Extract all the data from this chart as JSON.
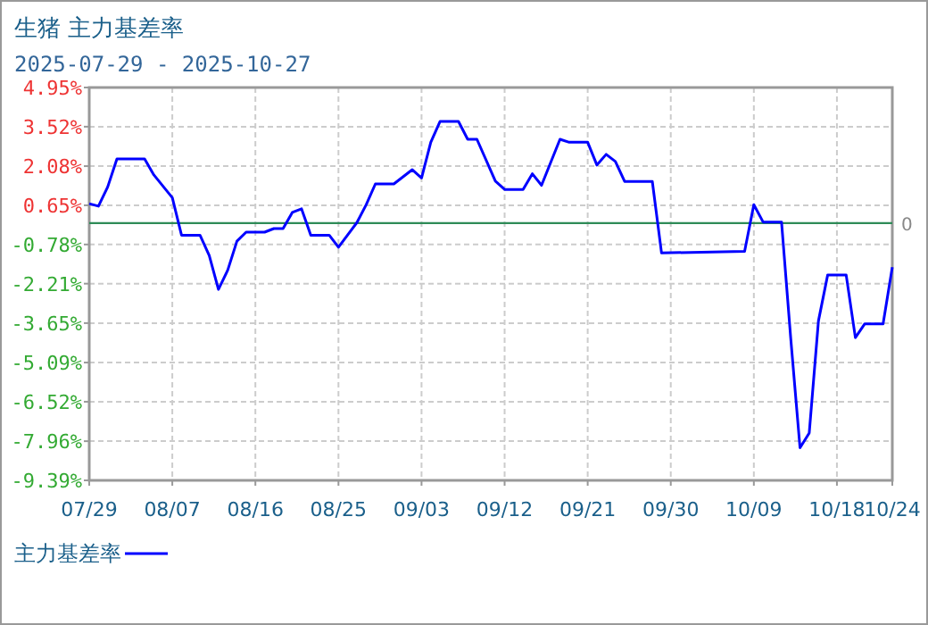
{
  "chart_data": {
    "type": "line",
    "title": "生猪 主力基差率",
    "subtitle": "2025-07-29 - 2025-10-27",
    "x": [
      "2025-07-29",
      "2025-07-30",
      "2025-07-31",
      "2025-08-01",
      "2025-08-04",
      "2025-08-05",
      "2025-08-07",
      "2025-08-08",
      "2025-08-10",
      "2025-08-11",
      "2025-08-12",
      "2025-08-13",
      "2025-08-14",
      "2025-08-15",
      "2025-08-17",
      "2025-08-18",
      "2025-08-19",
      "2025-08-20",
      "2025-08-21",
      "2025-08-22",
      "2025-08-24",
      "2025-08-25",
      "2025-08-27",
      "2025-08-28",
      "2025-08-29",
      "2025-08-31",
      "2025-09-02",
      "2025-09-03",
      "2025-09-04",
      "2025-09-05",
      "2025-09-07",
      "2025-09-08",
      "2025-09-09",
      "2025-09-11",
      "2025-09-12",
      "2025-09-14",
      "2025-09-15",
      "2025-09-16",
      "2025-09-18",
      "2025-09-19",
      "2025-09-21",
      "2025-09-22",
      "2025-09-23",
      "2025-09-24",
      "2025-09-25",
      "2025-09-28",
      "2025-09-29",
      "2025-10-08",
      "2025-10-09",
      "2025-10-10",
      "2025-10-12",
      "2025-10-13",
      "2025-10-14",
      "2025-10-15",
      "2025-10-16",
      "2025-10-17",
      "2025-10-19",
      "2025-10-20",
      "2025-10-21",
      "2025-10-23",
      "2025-10-24"
    ],
    "series": [
      {
        "name": "主力基差率",
        "color": "#0000ff",
        "values": [
          0.71,
          0.62,
          1.32,
          2.34,
          2.34,
          1.76,
          0.93,
          -0.44,
          -0.44,
          -1.18,
          -2.42,
          -1.72,
          -0.66,
          -0.33,
          -0.33,
          -0.2,
          -0.2,
          0.39,
          0.52,
          -0.44,
          -0.44,
          -0.88,
          0.02,
          0.67,
          1.43,
          1.43,
          1.95,
          1.65,
          2.95,
          3.71,
          3.71,
          3.06,
          3.06,
          1.53,
          1.23,
          1.23,
          1.8,
          1.38,
          3.06,
          2.95,
          2.95,
          2.12,
          2.51,
          2.25,
          1.52,
          1.52,
          -1.09,
          -1.03,
          0.67,
          0.04,
          0.04,
          -4.22,
          -8.2,
          -7.66,
          -3.57,
          -1.89,
          -1.89,
          -4.18,
          -3.68,
          -3.68,
          -1.61
        ]
      }
    ],
    "xlim": [
      "2025-07-29",
      "2025-10-24"
    ],
    "xticks": [
      {
        "value": "2025-07-29",
        "label": "07/29"
      },
      {
        "value": "2025-08-07",
        "label": "08/07"
      },
      {
        "value": "2025-08-16",
        "label": "08/16"
      },
      {
        "value": "2025-08-25",
        "label": "08/25"
      },
      {
        "value": "2025-09-03",
        "label": "09/03"
      },
      {
        "value": "2025-09-12",
        "label": "09/12"
      },
      {
        "value": "2025-09-21",
        "label": "09/21"
      },
      {
        "value": "2025-09-30",
        "label": "09/30"
      },
      {
        "value": "2025-10-09",
        "label": "10/09"
      },
      {
        "value": "2025-10-18",
        "label": "10/18"
      },
      {
        "value": "2025-10-24",
        "label": "10/24"
      }
    ],
    "ylim": [
      -9.39,
      4.95
    ],
    "yticks": [
      {
        "value": -9.39,
        "label": "-9.39%"
      },
      {
        "value": -7.96,
        "label": "-7.96%"
      },
      {
        "value": -6.52,
        "label": "-6.52%"
      },
      {
        "value": -5.09,
        "label": "-5.09%"
      },
      {
        "value": -3.65,
        "label": "-3.65%"
      },
      {
        "value": -2.21,
        "label": "-2.21%"
      },
      {
        "value": -0.78,
        "label": "-0.78%"
      },
      {
        "value": 0.65,
        "label": "0.65%"
      },
      {
        "value": 2.08,
        "label": "2.08%"
      },
      {
        "value": 3.52,
        "label": "3.52%"
      },
      {
        "value": 4.95,
        "label": "4.95%"
      }
    ],
    "ref_lines": [
      {
        "axis": "y",
        "value": 0,
        "label": "0",
        "color": "#2e8b57"
      }
    ],
    "grid": true,
    "legend": "bottom left",
    "line_style": "solid",
    "marker": "none"
  }
}
